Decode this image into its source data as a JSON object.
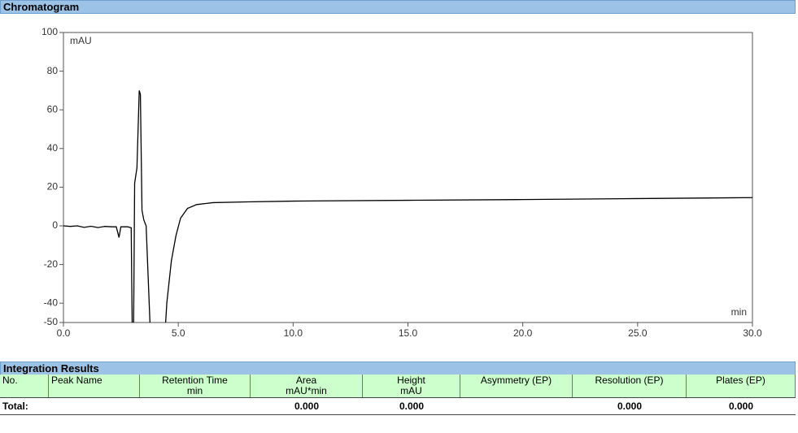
{
  "chart_data": {
    "type": "line",
    "title": "Chromatogram",
    "y_label": "mAU",
    "x_label": "min",
    "color": "#000000",
    "x": [
      0,
      0.3,
      0.6,
      0.9,
      1.2,
      1.5,
      1.8,
      2.1,
      2.3,
      2.42,
      2.5,
      2.6,
      2.8,
      2.95,
      3.0,
      3.05,
      3.1,
      3.2,
      3.3,
      3.35,
      3.42,
      3.5,
      3.6,
      3.7,
      3.8,
      3.9,
      4.3,
      4.4,
      4.5,
      4.7,
      4.9,
      5.1,
      5.4,
      5.8,
      6.5,
      8,
      10,
      15,
      20,
      25,
      30
    ],
    "values": [
      0,
      -0.3,
      0,
      -0.8,
      -0.2,
      -0.9,
      -0.3,
      -0.5,
      -0.5,
      -6,
      -0.5,
      -0.5,
      -0.5,
      -1,
      -60,
      -60,
      22,
      30,
      70,
      68,
      8,
      3,
      0,
      -30,
      -60,
      -60,
      -60,
      -60,
      -40,
      -18,
      -5,
      4,
      9,
      11,
      12,
      12.4,
      12.8,
      13.2,
      13.6,
      14.1,
      14.6
    ],
    "xlim": [
      0,
      30
    ],
    "ylim": [
      -50,
      100
    ],
    "xticks": [
      {
        "value": 0,
        "label": "0.0"
      },
      {
        "value": 5,
        "label": "5.0"
      },
      {
        "value": 10,
        "label": "10.0"
      },
      {
        "value": 15,
        "label": "15.0"
      },
      {
        "value": 20,
        "label": "20.0"
      },
      {
        "value": 25,
        "label": "25.0"
      },
      {
        "value": 30,
        "label": "30.0"
      }
    ],
    "yticks": [
      -50,
      -40,
      -20,
      0,
      20,
      40,
      60,
      80,
      100
    ]
  },
  "table": {
    "title": "Integration Results",
    "columns": [
      {
        "name": "No."
      },
      {
        "name": "Peak Name"
      },
      {
        "name": "Retention Time",
        "unit": "min"
      },
      {
        "name": "Area",
        "unit": "mAU*min"
      },
      {
        "name": "Height",
        "unit": "mAU"
      },
      {
        "name": "Asymmetry (EP)"
      },
      {
        "name": "Resolution (EP)"
      },
      {
        "name": "Plates (EP)"
      }
    ],
    "total": {
      "label": "Total:",
      "area": "0.000",
      "height": "0.000",
      "resolution": "0.000",
      "plates": "0.000"
    }
  }
}
